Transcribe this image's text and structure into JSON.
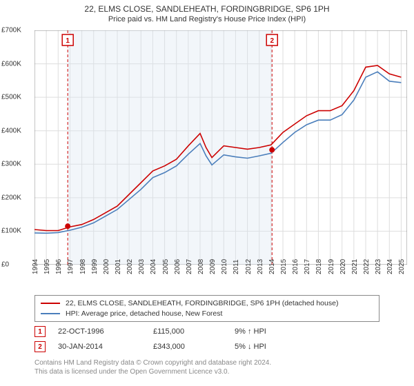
{
  "title_line1": "22, ELMS CLOSE, SANDLEHEATH, FORDINGBRIDGE, SP6 1PH",
  "title_line2": "Price paid vs. HM Land Registry's House Price Index (HPI)",
  "chart": {
    "type": "line",
    "background_color": "#ffffff",
    "grid_color": "#dddddd",
    "title_fontsize": 12,
    "subtitle_fontsize": 11,
    "axis_label_fontsize": 10,
    "xlim": [
      1994,
      2025.5
    ],
    "ylim": [
      0,
      700000
    ],
    "ytick_step": 100000,
    "yticks": [
      "£0",
      "£100K",
      "£200K",
      "£300K",
      "£400K",
      "£500K",
      "£600K",
      "£700K"
    ],
    "xticks": [
      1994,
      1995,
      1996,
      1997,
      1998,
      1999,
      2000,
      2001,
      2002,
      2003,
      2004,
      2005,
      2006,
      2007,
      2008,
      2009,
      2010,
      2011,
      2012,
      2013,
      2014,
      2015,
      2016,
      2017,
      2018,
      2019,
      2020,
      2021,
      2022,
      2023,
      2024,
      2025
    ],
    "shaded_band": {
      "x_start": 1996.81,
      "x_end": 2014.08,
      "fill": "#d9e6f2",
      "opacity": 0.35
    },
    "series": [
      {
        "name": "22, ELMS CLOSE, SANDLEHEATH, FORDINGBRIDGE, SP6 1PH (detached house)",
        "color": "#cc0000",
        "line_width": 1.6,
        "points": [
          [
            1994,
            105000
          ],
          [
            1995,
            102000
          ],
          [
            1996,
            102000
          ],
          [
            1997,
            113000
          ],
          [
            1998,
            120000
          ],
          [
            1999,
            135000
          ],
          [
            2000,
            155000
          ],
          [
            2001,
            175000
          ],
          [
            2002,
            210000
          ],
          [
            2003,
            245000
          ],
          [
            2004,
            280000
          ],
          [
            2005,
            295000
          ],
          [
            2006,
            315000
          ],
          [
            2007,
            355000
          ],
          [
            2008,
            392000
          ],
          [
            2008.5,
            350000
          ],
          [
            2009,
            320000
          ],
          [
            2010,
            355000
          ],
          [
            2011,
            350000
          ],
          [
            2012,
            345000
          ],
          [
            2013,
            350000
          ],
          [
            2014,
            358000
          ],
          [
            2015,
            395000
          ],
          [
            2016,
            420000
          ],
          [
            2017,
            445000
          ],
          [
            2018,
            460000
          ],
          [
            2019,
            460000
          ],
          [
            2020,
            475000
          ],
          [
            2021,
            520000
          ],
          [
            2022,
            590000
          ],
          [
            2023,
            595000
          ],
          [
            2024,
            570000
          ],
          [
            2025,
            560000
          ]
        ]
      },
      {
        "name": "HPI: Average price, detached house, New Forest",
        "color": "#4a7ebb",
        "line_width": 1.6,
        "points": [
          [
            1994,
            95000
          ],
          [
            1995,
            94000
          ],
          [
            1996,
            96000
          ],
          [
            1997,
            103000
          ],
          [
            1998,
            112000
          ],
          [
            1999,
            125000
          ],
          [
            2000,
            145000
          ],
          [
            2001,
            165000
          ],
          [
            2002,
            195000
          ],
          [
            2003,
            225000
          ],
          [
            2004,
            260000
          ],
          [
            2005,
            275000
          ],
          [
            2006,
            295000
          ],
          [
            2007,
            330000
          ],
          [
            2008,
            362000
          ],
          [
            2008.5,
            325000
          ],
          [
            2009,
            298000
          ],
          [
            2010,
            328000
          ],
          [
            2011,
            322000
          ],
          [
            2012,
            318000
          ],
          [
            2013,
            325000
          ],
          [
            2014,
            333000
          ],
          [
            2015,
            365000
          ],
          [
            2016,
            395000
          ],
          [
            2017,
            418000
          ],
          [
            2018,
            432000
          ],
          [
            2019,
            432000
          ],
          [
            2020,
            448000
          ],
          [
            2021,
            492000
          ],
          [
            2022,
            560000
          ],
          [
            2023,
            576000
          ],
          [
            2024,
            548000
          ],
          [
            2025,
            544000
          ]
        ]
      }
    ],
    "marker_lines": [
      {
        "id": "1",
        "x": 1996.81,
        "color": "#cc0000",
        "dash": "4,3"
      },
      {
        "id": "2",
        "x": 2014.08,
        "color": "#cc0000",
        "dash": "4,3"
      }
    ],
    "sale_points": [
      {
        "x": 1996.81,
        "y": 115000,
        "color": "#cc0000"
      },
      {
        "x": 2014.08,
        "y": 343000,
        "color": "#cc0000"
      }
    ]
  },
  "legend": {
    "items": [
      {
        "color": "#cc0000",
        "label": "22, ELMS CLOSE, SANDLEHEATH, FORDINGBRIDGE, SP6 1PH (detached house)"
      },
      {
        "color": "#4a7ebb",
        "label": "HPI: Average price, detached house, New Forest"
      }
    ]
  },
  "transactions": [
    {
      "marker": "1",
      "date": "22-OCT-1996",
      "price": "£115,000",
      "diff": "9% ↑ HPI"
    },
    {
      "marker": "2",
      "date": "30-JAN-2014",
      "price": "£343,000",
      "diff": "5% ↓ HPI"
    }
  ],
  "footer_line1": "Contains HM Land Registry data © Crown copyright and database right 2024.",
  "footer_line2": "This data is licensed under the Open Government Licence v3.0."
}
